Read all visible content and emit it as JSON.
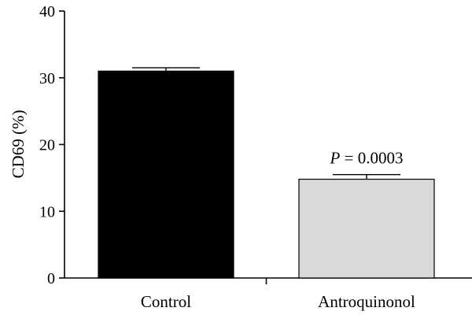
{
  "chart_data": {
    "type": "bar",
    "categories": [
      "Control",
      "Antroquinonol"
    ],
    "values": [
      31.0,
      14.8
    ],
    "errors": [
      0.5,
      0.7
    ],
    "bar_colors": [
      "#000000",
      "#d9d9d9"
    ],
    "ylabel": "CD69 (%)",
    "xlabel": "",
    "ylim": [
      0,
      40
    ],
    "yticks": [
      0,
      10,
      20,
      30,
      40
    ],
    "grid": false,
    "annotation": {
      "category": "Antroquinonol",
      "p_symbol": "P",
      "p_text": " = 0.0003"
    }
  }
}
